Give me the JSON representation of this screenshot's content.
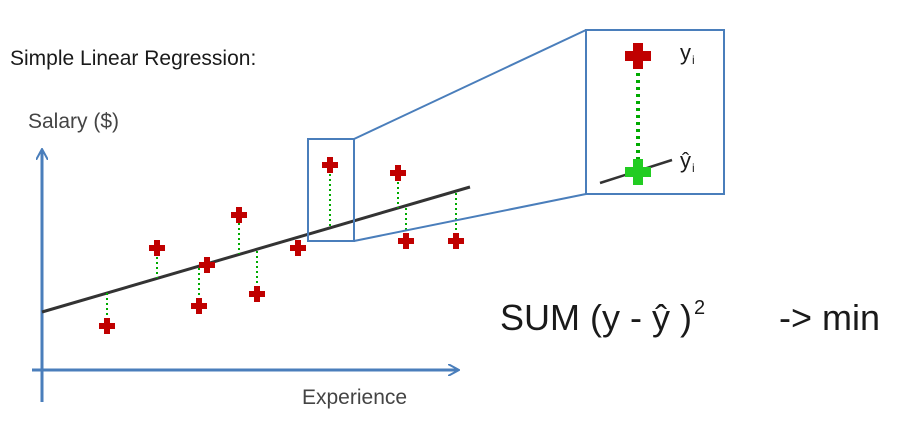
{
  "title": "Simple Linear Regression:",
  "y_axis_label": "Salary ($)",
  "x_axis_label": "Experience",
  "formula": {
    "text": "SUM (y - ŷ )",
    "exponent": "2",
    "result": "-> min"
  },
  "zoom_labels": {
    "observed": "y",
    "predicted": "ŷ",
    "subscript": "i"
  },
  "colors": {
    "axis": "#4a7ebb",
    "regression_line": "#333333",
    "observed_point": "#c00000",
    "predicted_point": "#22cc22",
    "residual": "#00aa00"
  }
}
